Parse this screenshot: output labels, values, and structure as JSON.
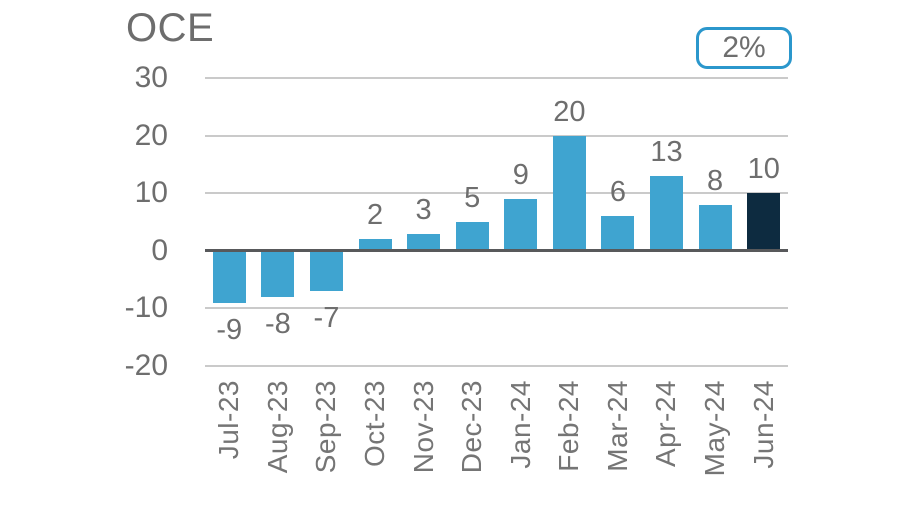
{
  "title": "OCE",
  "badge": {
    "label": "2%"
  },
  "colors": {
    "bar": "#3fa4d0",
    "bar_highlight": "#0d2b40",
    "grid": "#cacaca",
    "zero_axis": "#58595b",
    "text": "#6e6e6e",
    "badge_border": "#2b97cc"
  },
  "chart_data": {
    "type": "bar",
    "title": "OCE",
    "categories": [
      "Jul-23",
      "Aug-23",
      "Sep-23",
      "Oct-23",
      "Nov-23",
      "Dec-23",
      "Jan-24",
      "Feb-24",
      "Mar-24",
      "Apr-24",
      "May-24",
      "Jun-24"
    ],
    "values": [
      -9,
      -8,
      -7,
      2,
      3,
      5,
      9,
      20,
      6,
      13,
      8,
      10
    ],
    "value_labels": [
      "-9",
      "-8",
      "-7",
      "2",
      "3",
      "5",
      "9",
      "20",
      "6",
      "13",
      "8",
      "10"
    ],
    "highlight_index": 11,
    "ylim": [
      -20,
      30
    ],
    "yticks": [
      30,
      20,
      10,
      0,
      -10,
      -20
    ],
    "grid": true,
    "legend": null,
    "annotation_badge": "2%"
  }
}
